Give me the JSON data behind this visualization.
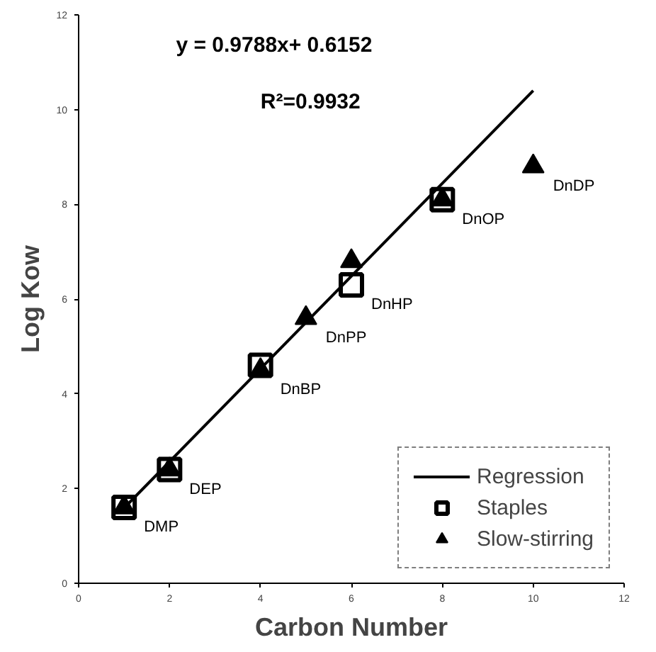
{
  "chart_data": {
    "type": "scatter",
    "xlabel": "Carbon Number",
    "ylabel": "Log Kow",
    "xlim": [
      0,
      12
    ],
    "ylim": [
      0,
      12
    ],
    "xticks": [
      0,
      2,
      4,
      6,
      8,
      10,
      12
    ],
    "yticks": [
      0,
      2,
      4,
      6,
      8,
      10,
      12
    ],
    "grid": false,
    "legend": "bottom right",
    "series": [
      {
        "name": "Regression",
        "type": "line",
        "color": "#000000",
        "marker": "none",
        "line_style": "solid",
        "x": [
          1,
          10
        ],
        "values": [
          1.59,
          10.4
        ]
      },
      {
        "name": "Staples",
        "color": "#000000",
        "marker": "square",
        "x": [
          1,
          2,
          4,
          6,
          8
        ],
        "values": [
          1.6,
          2.4,
          4.6,
          6.3,
          8.1
        ]
      },
      {
        "name": "Slow-stirring",
        "color": "#000000",
        "marker": "triangle",
        "x": [
          1,
          2,
          4,
          5,
          6,
          8,
          10
        ],
        "values": [
          1.6,
          2.4,
          4.5,
          5.6,
          6.8,
          8.1,
          8.8
        ]
      }
    ],
    "annotations": [
      "y = 0.9788x+ 0.6152",
      "R²=0.9932",
      {
        "text": "DMP",
        "x": 1,
        "y": 1.6
      },
      {
        "text": "DEP",
        "x": 2,
        "y": 2.4
      },
      {
        "text": "DnBP",
        "x": 4,
        "y": 4.5
      },
      {
        "text": "DnPP",
        "x": 5,
        "y": 5.6
      },
      {
        "text": "DnHP",
        "x": 6,
        "y": 6.3
      },
      {
        "text": "DnOP",
        "x": 8,
        "y": 8.1
      },
      {
        "text": "DnDP",
        "x": 10,
        "y": 8.8
      }
    ]
  }
}
